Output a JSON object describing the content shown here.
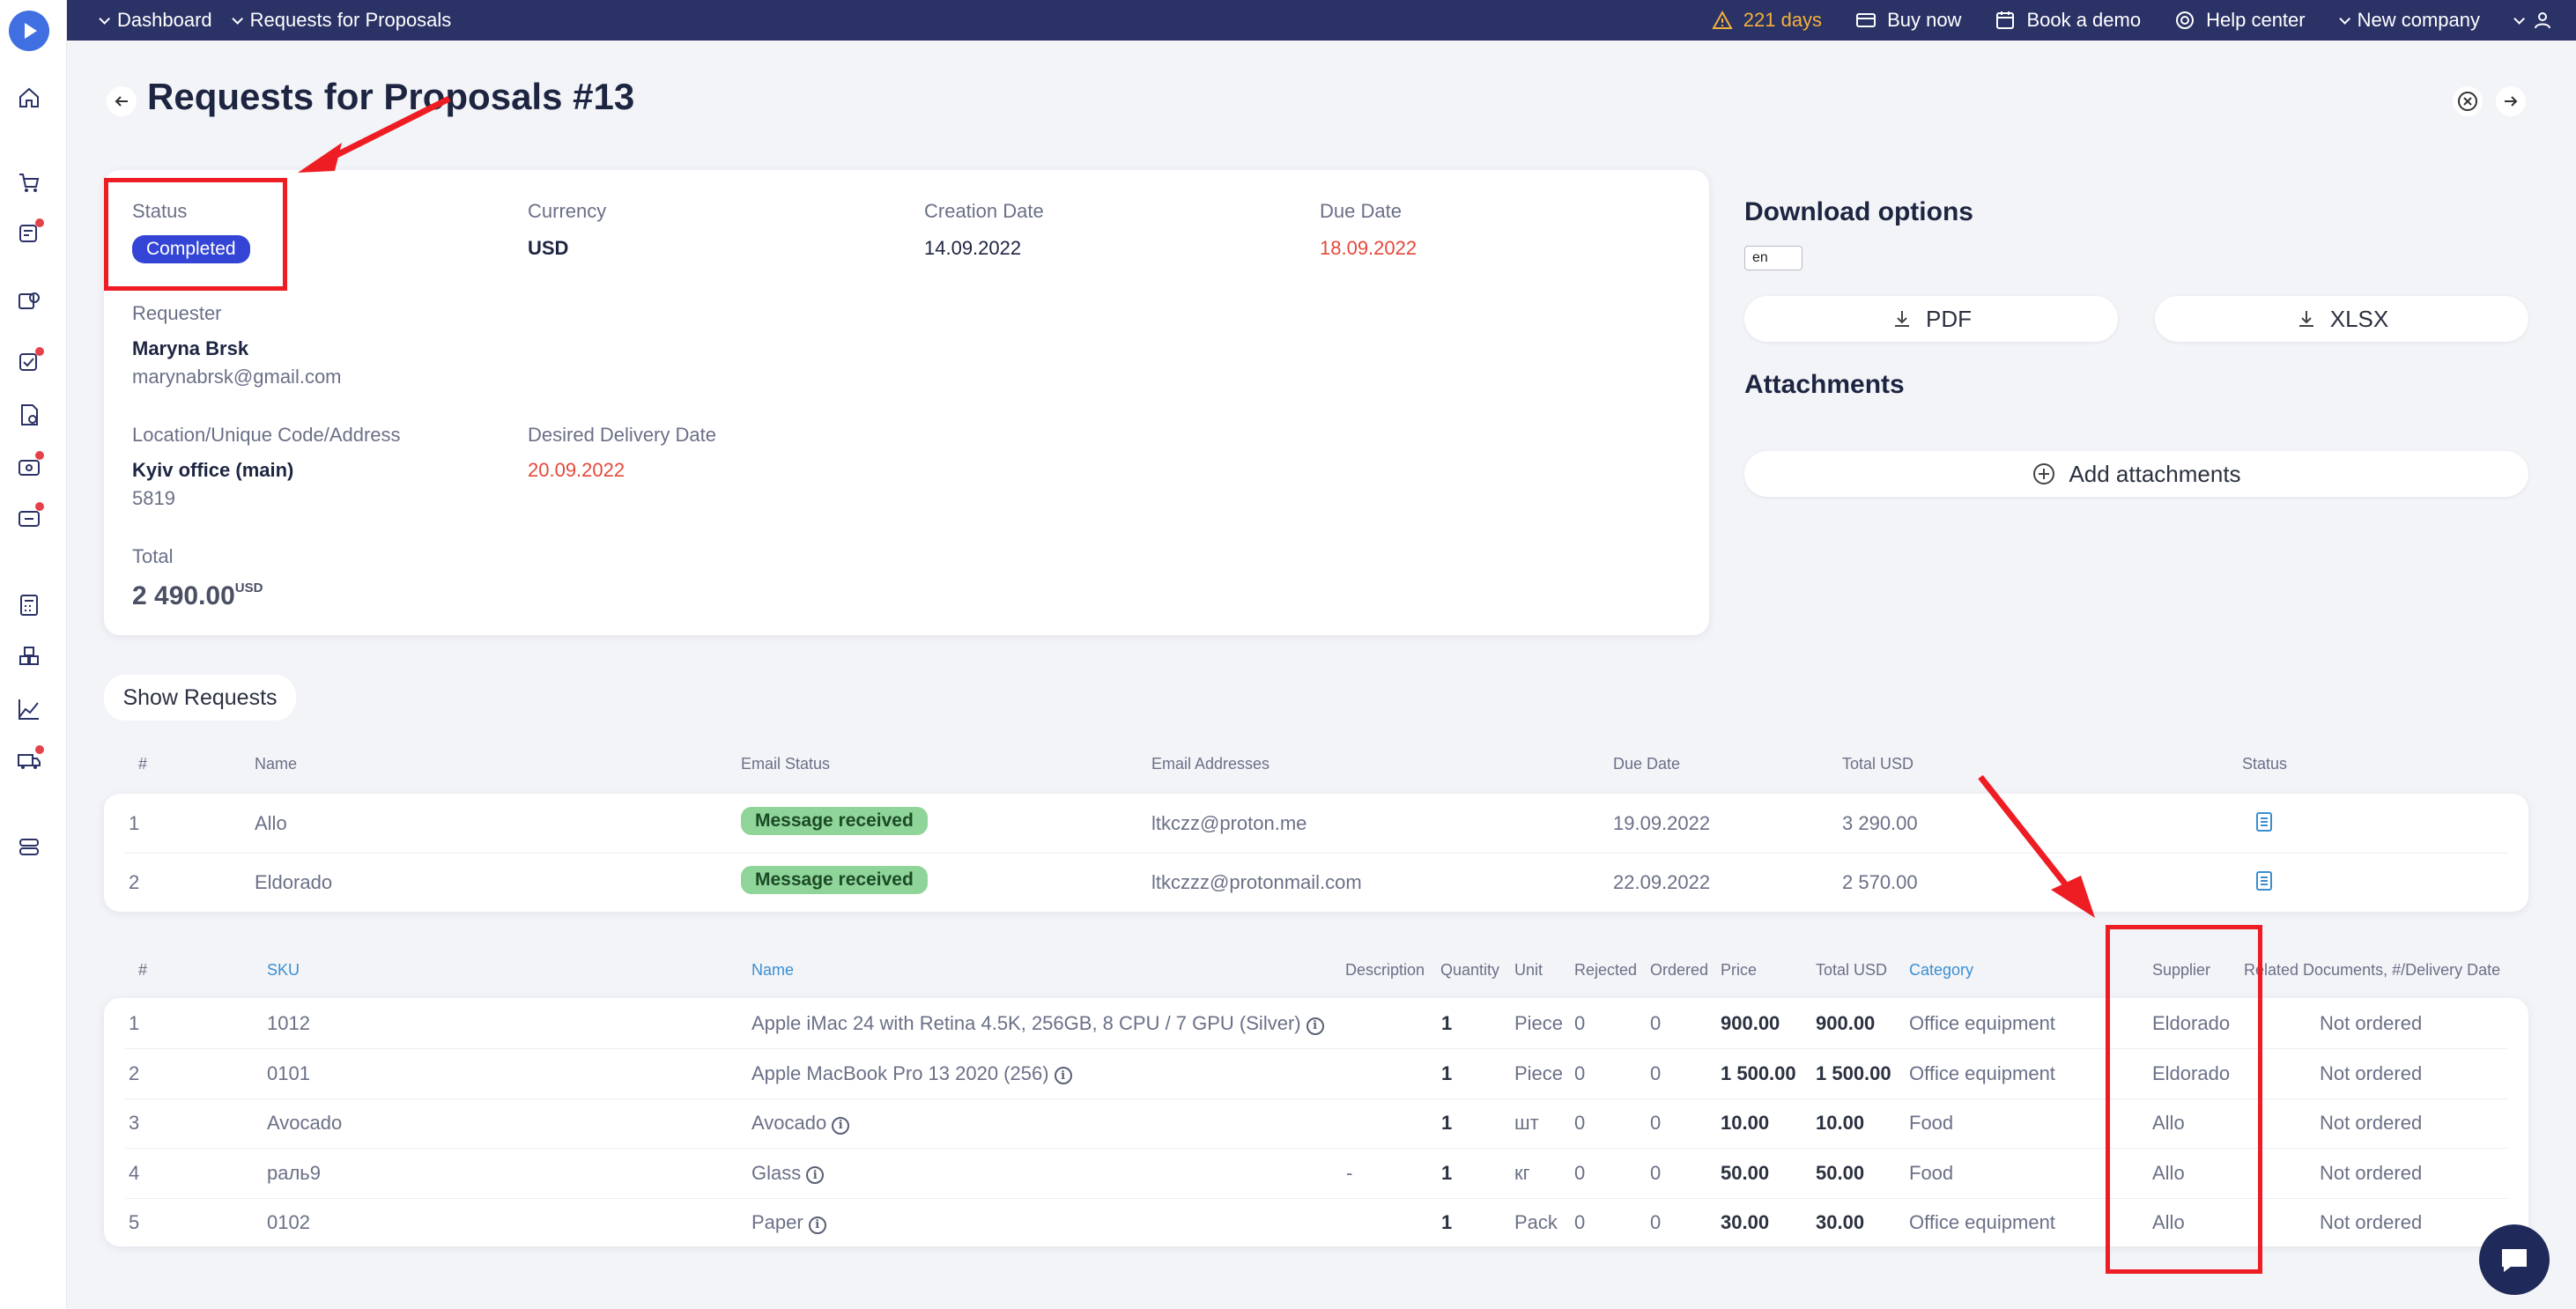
{
  "topbar": {
    "breadcrumbs": [
      "Dashboard",
      "Requests for Proposals"
    ],
    "trial": "221 days",
    "buy_now": "Buy now",
    "book_demo": "Book a demo",
    "help_center": "Help center",
    "company": "New company"
  },
  "page": {
    "title": "Requests for Proposals #13"
  },
  "info": {
    "status_label": "Status",
    "status_value": "Completed",
    "currency_label": "Currency",
    "currency_value": "USD",
    "creation_label": "Creation Date",
    "creation_value": "14.09.2022",
    "due_label": "Due Date",
    "due_value": "18.09.2022",
    "requester_label": "Requester",
    "requester_name": "Maryna Brsk",
    "requester_email": "marynabrsk@gmail.com",
    "location_label": "Location/Unique Code/Address",
    "location_name": "Kyiv office (main)",
    "location_code": "5819",
    "delivery_label": "Desired Delivery Date",
    "delivery_value": "20.09.2022",
    "total_label": "Total",
    "total_value": "2 490.00",
    "total_currency": "USD"
  },
  "download": {
    "heading": "Download options",
    "lang": "en",
    "pdf": "PDF",
    "xlsx": "XLSX",
    "attachments_heading": "Attachments",
    "add_attachments": "Add attachments"
  },
  "requests": {
    "show_button": "Show Requests",
    "headers": {
      "num": "#",
      "name": "Name",
      "email_status": "Email Status",
      "emails": "Email Addresses",
      "due": "Due Date",
      "total": "Total USD",
      "status": "Status"
    },
    "rows": [
      {
        "num": "1",
        "name": "Allo",
        "email_status": "Message received",
        "email": "ltkczz@proton.me",
        "due": "19.09.2022",
        "total": "3 290.00"
      },
      {
        "num": "2",
        "name": "Eldorado",
        "email_status": "Message received",
        "email": "ltkczzz@protonmail.com",
        "due": "22.09.2022",
        "total": "2 570.00"
      }
    ]
  },
  "items": {
    "headers": {
      "num": "#",
      "sku": "SKU",
      "name": "Name",
      "description": "Description",
      "quantity": "Quantity",
      "unit": "Unit",
      "rejected": "Rejected",
      "ordered": "Ordered",
      "price": "Price",
      "total": "Total USD",
      "category": "Category",
      "supplier": "Supplier",
      "related": "Related Documents, #/Delivery Date"
    },
    "rows": [
      {
        "num": "1",
        "sku": "1012",
        "name": "Apple iMac 24 with Retina 4.5K, 256GB, 8 CPU / 7 GPU (Silver)",
        "description": "",
        "quantity": "1",
        "unit": "Piece",
        "rejected": "0",
        "ordered": "0",
        "price": "900.00",
        "total": "900.00",
        "category": "Office equipment",
        "supplier": "Eldorado",
        "related": "Not ordered"
      },
      {
        "num": "2",
        "sku": "0101",
        "name": "Apple MacBook Pro 13 2020 (256)",
        "description": "",
        "quantity": "1",
        "unit": "Piece",
        "rejected": "0",
        "ordered": "0",
        "price": "1 500.00",
        "total": "1 500.00",
        "category": "Office equipment",
        "supplier": "Eldorado",
        "related": "Not ordered"
      },
      {
        "num": "3",
        "sku": "Avocado",
        "name": "Avocado",
        "description": "",
        "quantity": "1",
        "unit": "шт",
        "rejected": "0",
        "ordered": "0",
        "price": "10.00",
        "total": "10.00",
        "category": "Food",
        "supplier": "Allo",
        "related": "Not ordered"
      },
      {
        "num": "4",
        "sku": "раль9",
        "name": "Glass",
        "description": "-",
        "quantity": "1",
        "unit": "кг",
        "rejected": "0",
        "ordered": "0",
        "price": "50.00",
        "total": "50.00",
        "category": "Food",
        "supplier": "Allo",
        "related": "Not ordered"
      },
      {
        "num": "5",
        "sku": "0102",
        "name": "Paper",
        "description": "",
        "quantity": "1",
        "unit": "Pack",
        "rejected": "0",
        "ordered": "0",
        "price": "30.00",
        "total": "30.00",
        "category": "Office equipment",
        "supplier": "Allo",
        "related": "Not ordered"
      }
    ]
  },
  "colors": {
    "topbar": "#2a3266",
    "accent": "#3445d6",
    "danger": "#e5483a",
    "success_badge": "#8fd59a",
    "annotation": "#ee1d24"
  }
}
